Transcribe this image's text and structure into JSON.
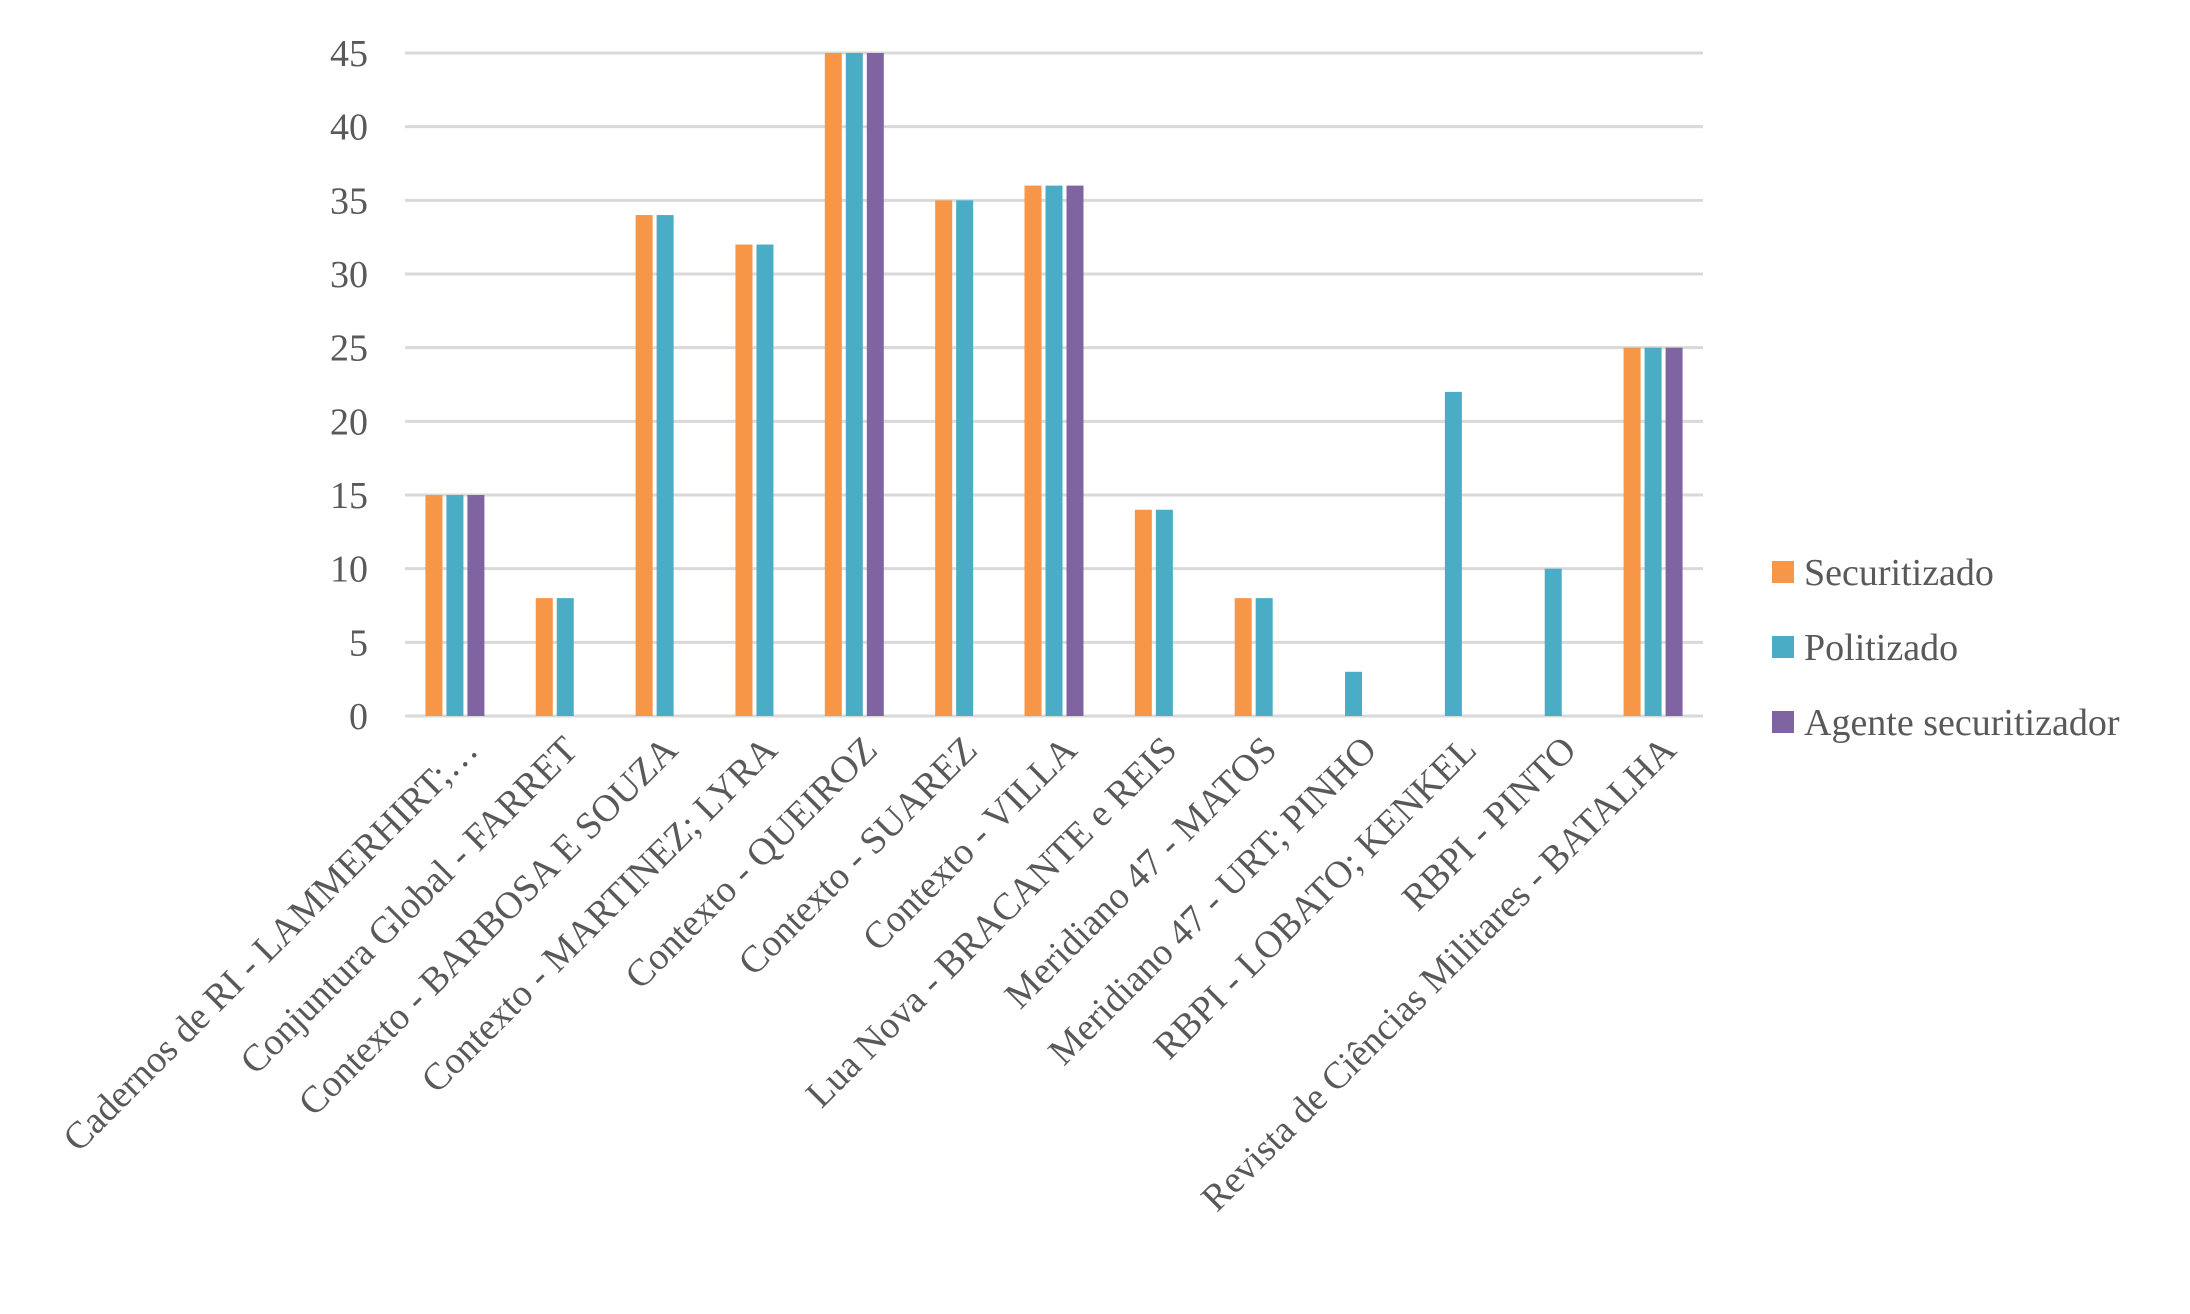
{
  "chart_data": {
    "type": "bar",
    "title": "",
    "xlabel": "",
    "ylabel": "",
    "ylim": [
      0,
      45
    ],
    "yticks": [
      0,
      5,
      10,
      15,
      20,
      25,
      30,
      35,
      40,
      45
    ],
    "grid": true,
    "legend_position": "right",
    "categories": [
      "Cadernos de RI - LAMMERHIRT;…",
      "Conjuntura Global - FARRET",
      "Contexto - BARBOSA E SOUZA",
      "Contexto - MARTINEZ; LYRA",
      "Contexto - QUEIROZ",
      "Contexto - SUAREZ",
      "Contexto - VILLA",
      "Lua Nova - BRACANTE e REIS",
      "Meridiano 47 - MATOS",
      "Meridiano 47 - URT; PINHO",
      "RBPI - LOBATO; KENKEL",
      "RBPI - PINTO",
      "Revista de Ciências Militares - BATALHA"
    ],
    "series": [
      {
        "name": "Securitizado",
        "color": "#f79646",
        "values": [
          15,
          8,
          34,
          32,
          45,
          35,
          36,
          14,
          8,
          0,
          0,
          0,
          25
        ]
      },
      {
        "name": "Politizado",
        "color": "#4bacc6",
        "values": [
          15,
          8,
          34,
          32,
          45,
          35,
          36,
          14,
          8,
          3,
          22,
          10,
          25
        ]
      },
      {
        "name": "Agente securitizador",
        "color": "#8064a2",
        "values": [
          15,
          0,
          0,
          0,
          45,
          0,
          36,
          0,
          0,
          0,
          0,
          0,
          25
        ]
      }
    ]
  }
}
